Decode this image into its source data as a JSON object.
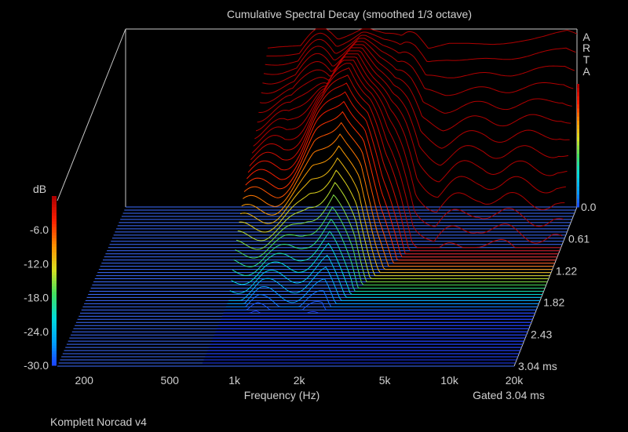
{
  "chart_data": {
    "type": "waterfall",
    "title": "Cumulative Spectral Decay (smoothed 1/3 octave)",
    "xlabel": "Frequency (Hz)",
    "zlabel": "dB",
    "x_scale": "log",
    "x_ticks": [
      "200",
      "500",
      "1k",
      "2k",
      "5k",
      "10k",
      "20k"
    ],
    "x_tick_values": [
      200,
      500,
      1000,
      2000,
      5000,
      10000,
      20000
    ],
    "z_ticks": [
      "-6.0",
      "-12.0",
      "-18.0",
      "-24.0",
      "-30.0"
    ],
    "z_tick_values": [
      -6,
      -12,
      -18,
      -24,
      -30
    ],
    "zlim": [
      -30,
      0
    ],
    "time_ticks": [
      "0.0",
      "0.61",
      "1.22",
      "1.82",
      "2.43",
      "3.04 ms"
    ],
    "time_tick_values": [
      0.0,
      0.61,
      1.22,
      1.82,
      2.43,
      3.04
    ],
    "time_unit": "ms",
    "gating_label": "Gated 3.04 ms",
    "slice_count": 51,
    "xlim": [
      150,
      20000
    ],
    "freq_start_hz": 700,
    "colormap": [
      "#1e3cff",
      "#00a0ff",
      "#00dcdc",
      "#40e060",
      "#d8e020",
      "#ff9000",
      "#ff2000",
      "#b00000"
    ],
    "first_slice": {
      "freqs_hz": [
        700,
        800,
        1000,
        1200,
        1500,
        2000,
        2500,
        3000,
        3500,
        4000,
        5000,
        6000,
        7000,
        8000,
        9000,
        10000,
        12000,
        14000,
        16000,
        18000,
        20000
      ],
      "db": [
        -3.2,
        -3.0,
        -2.8,
        -2.7,
        -2.6,
        -2.4,
        -2.4,
        -2.6,
        -2.5,
        -3.3,
        -2.4,
        -2.4,
        -2.5,
        -2.6,
        -2.5,
        -2.3,
        -1.8,
        -1.2,
        -0.6,
        -0.2,
        -0.8
      ]
    },
    "decay_by_freq": [
      {
        "hz": 700,
        "end_ms": 1.95,
        "hump_db": 0,
        "hump_ms": 0,
        "hump_width_ms": 1.0
      },
      {
        "hz": 1000,
        "end_ms": 2.05,
        "hump_db": 0,
        "hump_ms": 0,
        "hump_width_ms": 1.0
      },
      {
        "hz": 1500,
        "end_ms": 2.0,
        "hump_db": 8,
        "hump_ms": 0.9,
        "hump_width_ms": 0.6
      },
      {
        "hz": 2000,
        "end_ms": 1.95,
        "hump_db": 14,
        "hump_ms": 0.9,
        "hump_width_ms": 0.7
      },
      {
        "hz": 2500,
        "end_ms": 1.7,
        "hump_db": 10,
        "hump_ms": 0.8,
        "hump_width_ms": 0.6
      },
      {
        "hz": 3000,
        "end_ms": 1.4,
        "hump_db": 4,
        "hump_ms": 0.5,
        "hump_width_ms": 0.5
      },
      {
        "hz": 4000,
        "end_ms": 0.9,
        "hump_db": 0,
        "hump_ms": 0,
        "hump_width_ms": 1.0
      },
      {
        "hz": 5000,
        "end_ms": 0.75,
        "hump_db": 0,
        "hump_ms": 0,
        "hump_width_ms": 1.0
      },
      {
        "hz": 8000,
        "end_ms": 0.85,
        "hump_db": 0,
        "hump_ms": 0,
        "hump_width_ms": 1.0
      },
      {
        "hz": 10000,
        "end_ms": 0.8,
        "hump_db": 0,
        "hump_ms": 0,
        "hump_width_ms": 1.0
      },
      {
        "hz": 20000,
        "end_ms": 0.7,
        "hump_db": 0,
        "hump_ms": 0,
        "hump_width_ms": 1.0
      }
    ],
    "floor_color": "#3c6cff",
    "grid": false,
    "legend": "colorbar-left"
  },
  "footer": {
    "device_name": "Komplett Norcad v4",
    "watermark": [
      "A",
      "R",
      "T",
      "A"
    ]
  }
}
